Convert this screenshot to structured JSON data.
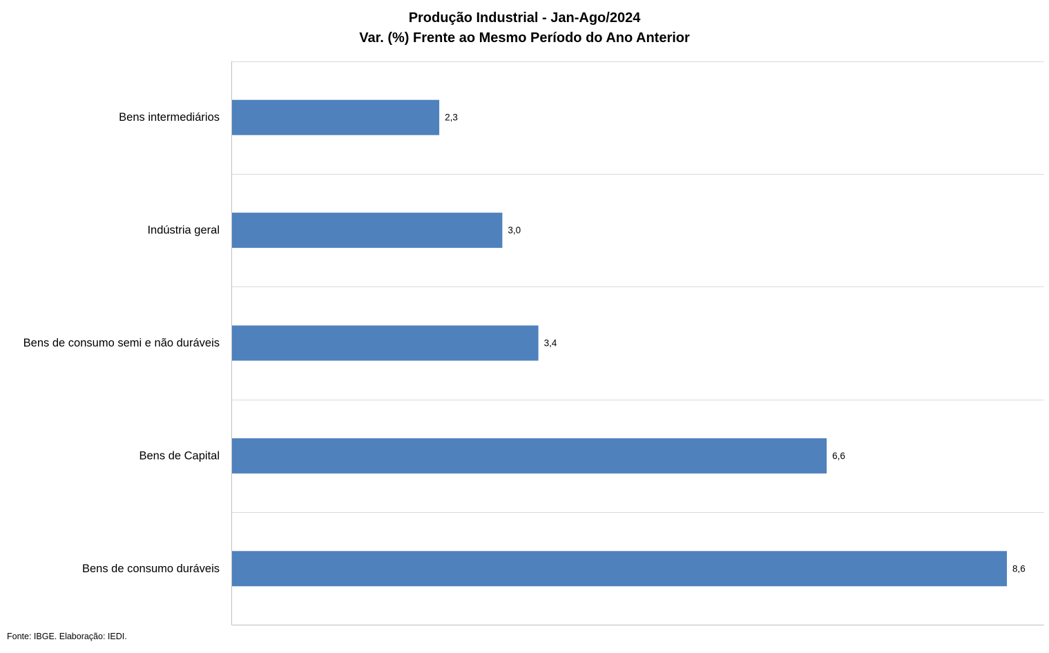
{
  "chart_data": {
    "type": "bar",
    "orientation": "horizontal",
    "title": "Produção Industrial - Jan-Ago/2024",
    "subtitle": "Var. (%) Frente ao Mesmo Período do Ano Anterior",
    "categories": [
      "Bens intermediários",
      "Indústria geral",
      "Bens de consumo semi e não duráveis",
      "Bens de Capital",
      "Bens de consumo duráveis"
    ],
    "values": [
      2.3,
      3.0,
      3.4,
      6.6,
      8.6
    ],
    "value_labels": [
      "2,3",
      "3,0",
      "3,4",
      "6,6",
      "8,6"
    ],
    "xlim": [
      0,
      9
    ],
    "xlabel": "",
    "ylabel": "",
    "grid": "horizontal separators",
    "legend": "none",
    "colors": {
      "bar": "#4f81bd",
      "grid": "#d9d9d9",
      "axis": "#bfbfbf"
    }
  },
  "footer": {
    "source": "Fonte: IBGE. Elaboração: IEDI."
  }
}
